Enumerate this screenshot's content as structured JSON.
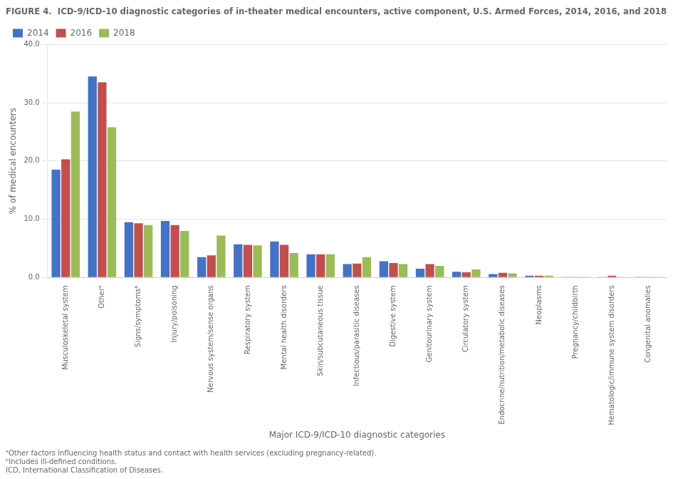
{
  "chart_data": {
    "type": "bar",
    "title": "FIGURE 4.  ICD-9/ICD-10 diagnostic categories of in-theater medical encounters, active component, U.S. Armed Forces, 2014, 2016, and 2018",
    "x_label": "Major ICD-9/ICD-10 diagnostic categories",
    "y_label": "% of medical encounters",
    "categories": [
      "Musculoskeletal system",
      "Otherᵃ",
      "Signs/symptomsᵇ",
      "Injury/poisoning",
      "Nervous system/sense organs",
      "Respiratory system",
      "Mental health disorders",
      "Skin/subcutaneous tissue",
      "Infectious/parasitic diseases",
      "Digestive system",
      "Genitourinary system",
      "Circulatory system",
      "Endocrine/nutrition/metabolic diseases",
      "Neoplasms",
      "Pregnancy/childbirth",
      "Hematologic/immune system disorders",
      "Congenital anomalies"
    ],
    "series": [
      {
        "name": "2014",
        "color": "#4472c4",
        "values": [
          18.5,
          34.5,
          9.5,
          9.7,
          3.5,
          5.7,
          6.2,
          4.0,
          2.3,
          2.8,
          1.5,
          1.0,
          0.6,
          0.3,
          0.1,
          0.05,
          0.05
        ]
      },
      {
        "name": "2016",
        "color": "#c0504d",
        "values": [
          20.3,
          33.5,
          9.3,
          9.0,
          3.8,
          5.6,
          5.6,
          4.0,
          2.4,
          2.5,
          2.3,
          0.9,
          0.8,
          0.3,
          0.05,
          0.3,
          0.05
        ]
      },
      {
        "name": "2018",
        "color": "#9bbb59",
        "values": [
          28.5,
          25.8,
          9.0,
          8.0,
          7.2,
          5.5,
          4.2,
          4.0,
          3.5,
          2.3,
          2.0,
          1.4,
          0.7,
          0.3,
          0.05,
          0.05,
          0.05
        ]
      }
    ],
    "ylim": [
      0,
      40
    ],
    "yticks": [
      {
        "value": 0,
        "label": "0.0"
      },
      {
        "value": 10,
        "label": "10.0"
      },
      {
        "value": 20,
        "label": "20.0"
      },
      {
        "value": 30,
        "label": "30.0"
      },
      {
        "value": 40,
        "label": "40.0"
      }
    ],
    "grid": true,
    "legend": "upper left",
    "annotations": [
      "ᵃOther factors influencing health status and contact with health services (excluding pregnancy-related).",
      "ᵇIncludes ill-defined conditions.",
      "ICD, International Classification of Diseases."
    ]
  }
}
